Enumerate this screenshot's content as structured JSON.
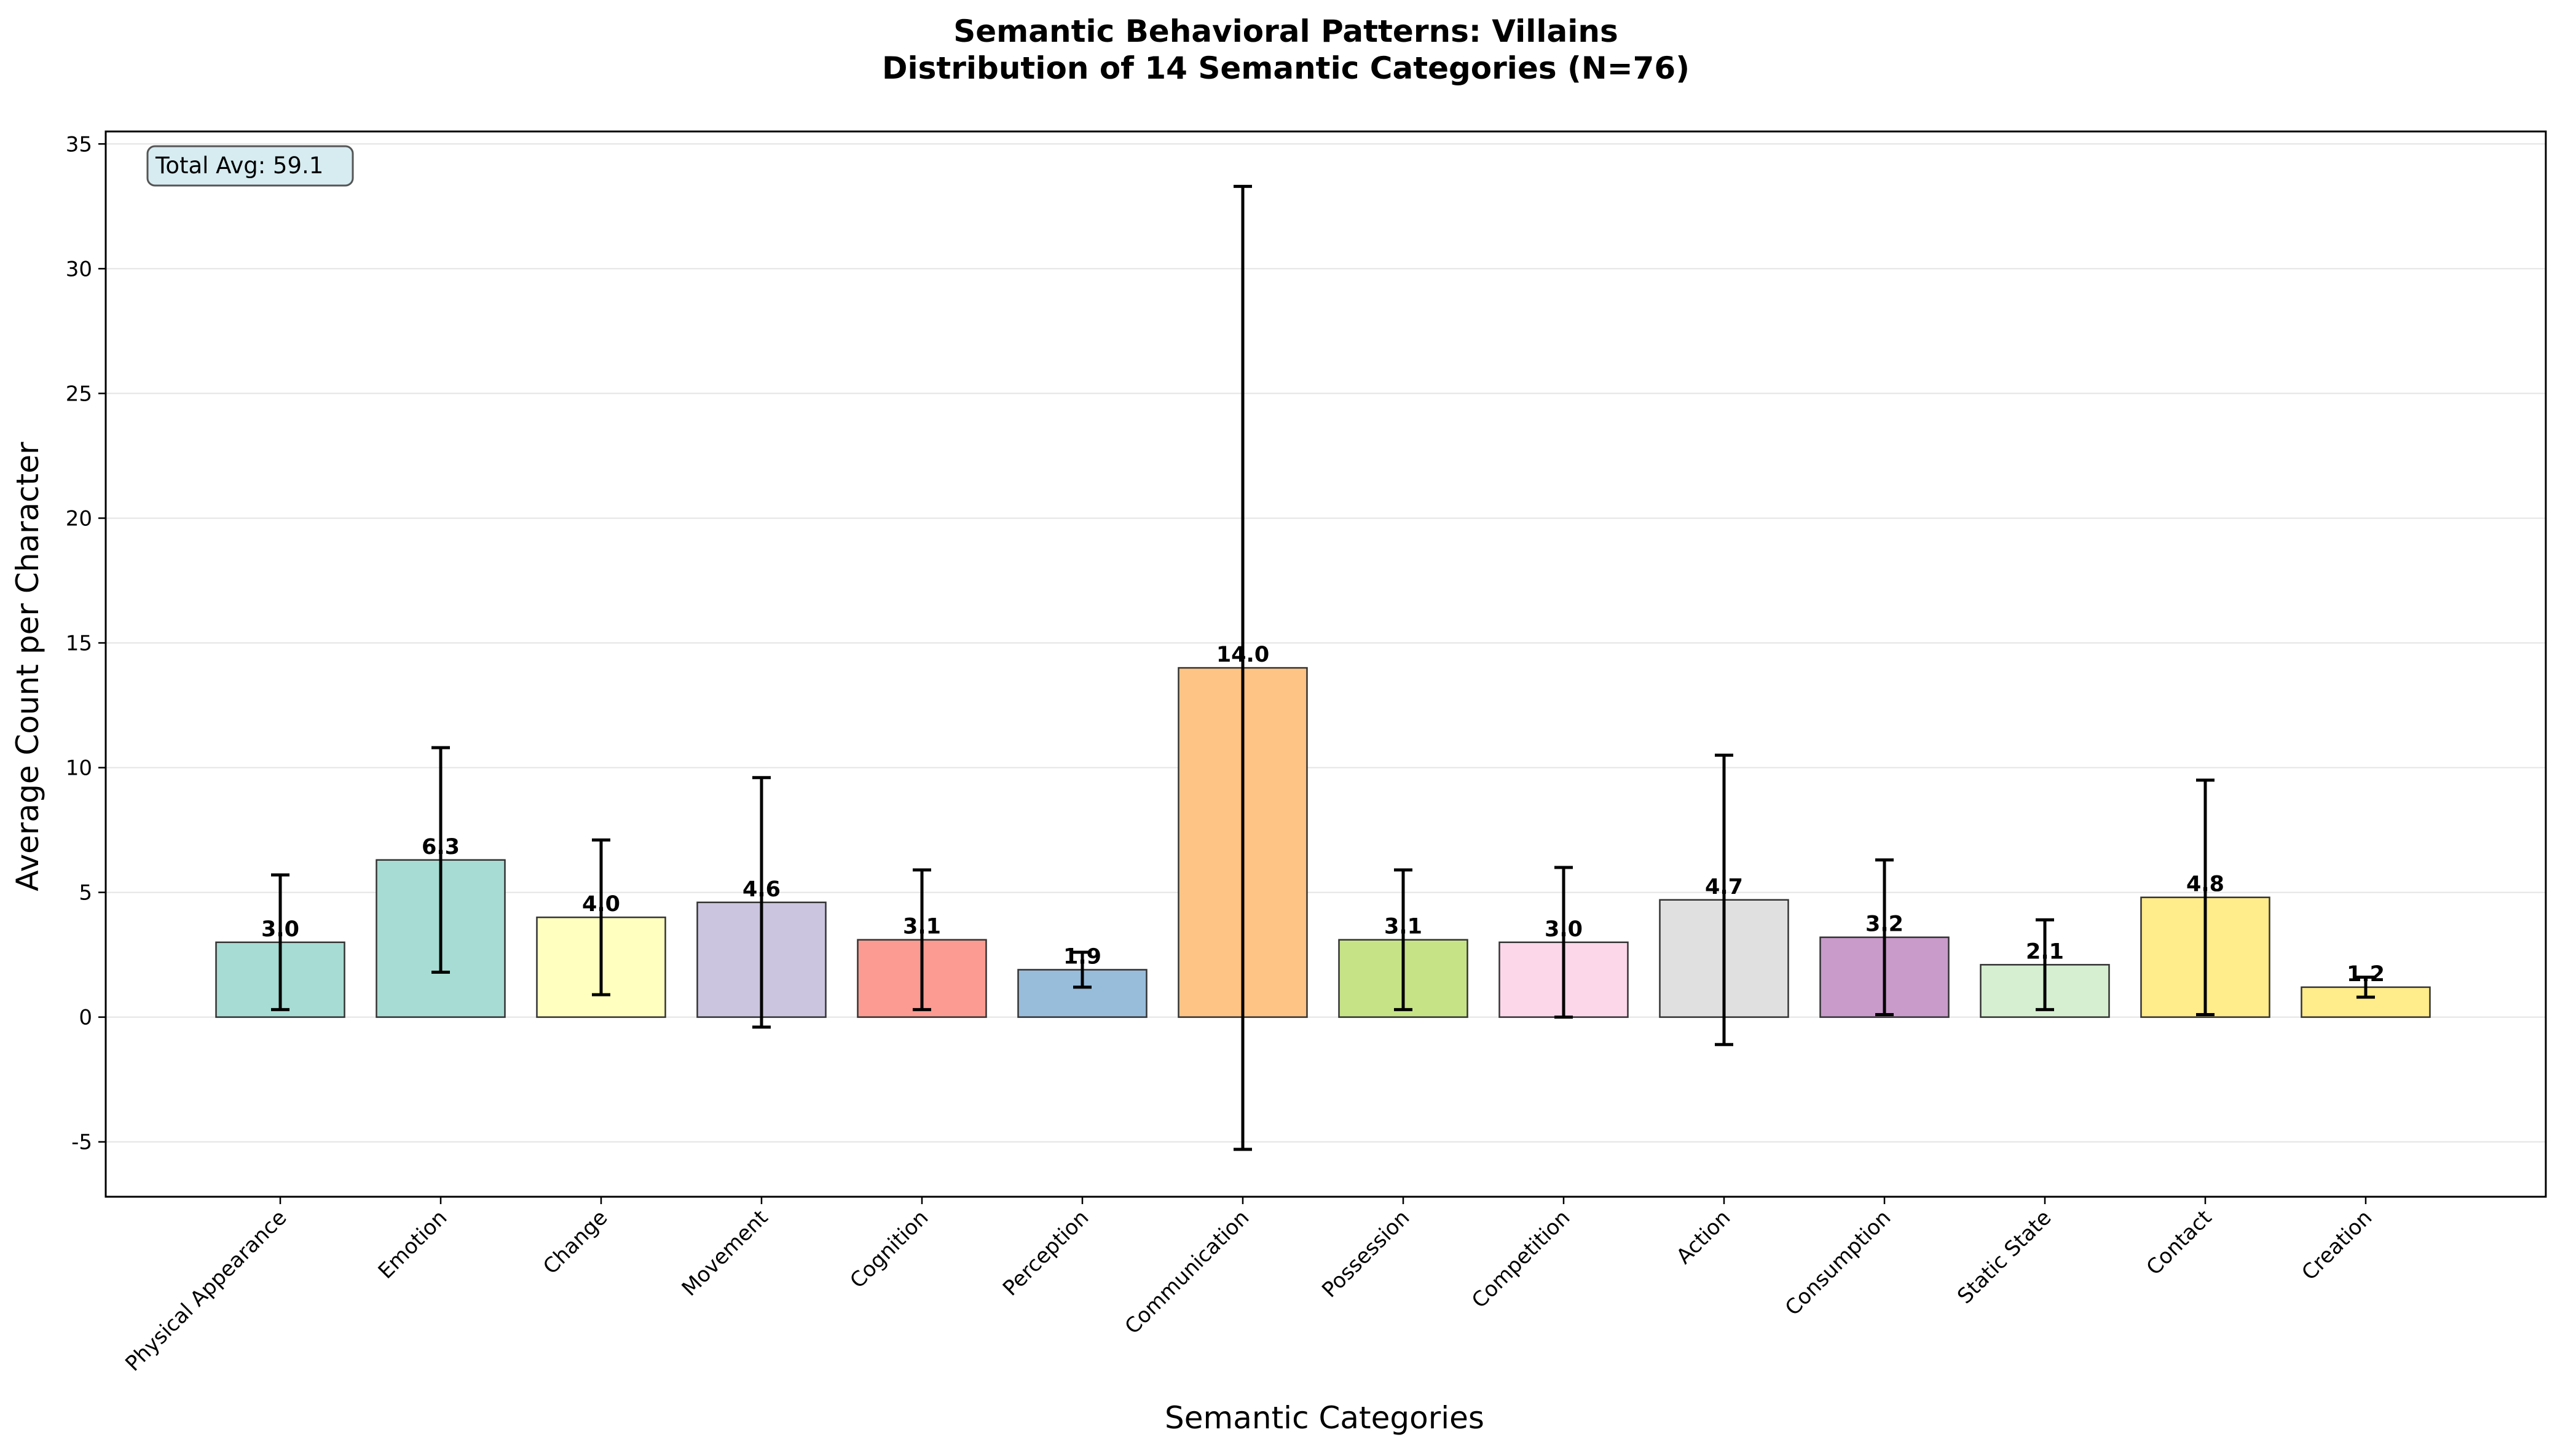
{
  "chart_data": {
    "type": "bar",
    "title": "Semantic Behavioral Patterns: Villains",
    "subtitle": "Distribution of 14 Semantic Categories (N=76)",
    "xlabel": "Semantic Categories",
    "ylabel": "Average Count per Character",
    "ylim": [
      -7.2,
      35.5
    ],
    "yticks": [
      -5,
      0,
      5,
      10,
      15,
      20,
      25,
      30,
      35
    ],
    "grid": "y",
    "annotation": "Total Avg: 59.1",
    "categories": [
      "Physical Appearance",
      "Emotion",
      "Change",
      "Movement",
      "Cognition",
      "Perception",
      "Communication",
      "Possession",
      "Competition",
      "Action",
      "Consumption",
      "Static State",
      "Contact",
      "Creation"
    ],
    "values": [
      3.0,
      6.3,
      4.0,
      4.6,
      3.1,
      1.9,
      14.0,
      3.1,
      3.0,
      4.7,
      3.2,
      2.1,
      4.8,
      1.2
    ],
    "value_labels": [
      "3.0",
      "6.3",
      "4.0",
      "4.6",
      "3.1",
      "1.9",
      "14.0",
      "3.1",
      "3.0",
      "4.7",
      "3.2",
      "2.1",
      "4.8",
      "1.2"
    ],
    "errors": [
      2.7,
      4.5,
      3.1,
      5.0,
      2.8,
      0.7,
      19.3,
      2.8,
      3.0,
      5.8,
      3.1,
      1.8,
      4.7,
      0.4
    ],
    "colors": [
      "#a6dcd3",
      "#a6dcd3",
      "#ffffc0",
      "#cbc5e0",
      "#fb9b91",
      "#98bddb",
      "#fdc485",
      "#c6e486",
      "#fcd6e9",
      "#e0e0e0",
      "#c89bca",
      "#d5efd0",
      "#ffec8a",
      "#ffec8a"
    ]
  }
}
